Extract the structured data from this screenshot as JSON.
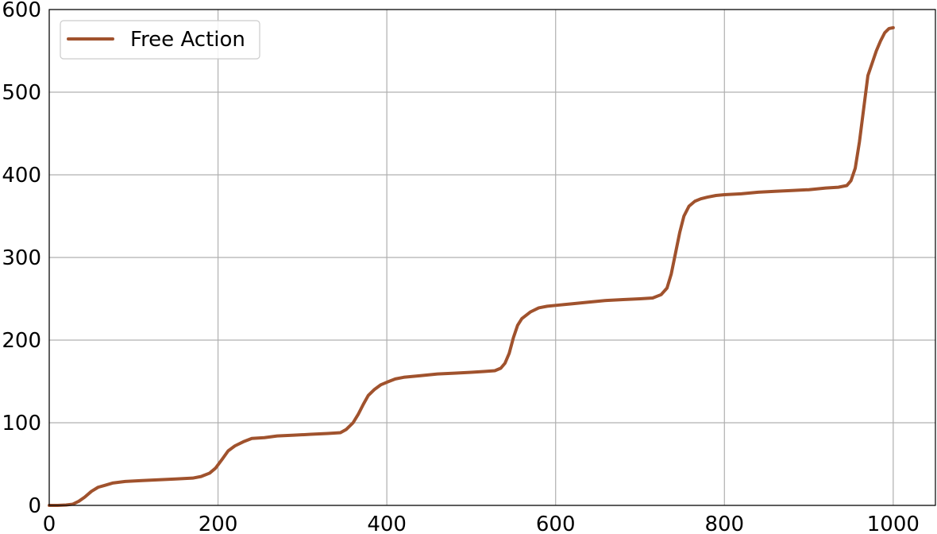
{
  "chart_data": {
    "type": "line",
    "title": "",
    "xlabel": "",
    "ylabel": "",
    "xlim": [
      0,
      1050
    ],
    "ylim": [
      0,
      600
    ],
    "x_ticks": [
      0,
      200,
      400,
      600,
      800,
      1000
    ],
    "y_ticks": [
      0,
      100,
      200,
      300,
      400,
      500,
      600
    ],
    "grid": true,
    "legend_position": "top-left",
    "series": [
      {
        "name": "Free Action",
        "color": "#a0522d",
        "x": [
          0,
          10,
          20,
          28,
          35,
          42,
          50,
          58,
          65,
          75,
          90,
          110,
          130,
          150,
          170,
          180,
          190,
          197,
          205,
          212,
          220,
          230,
          240,
          255,
          270,
          290,
          310,
          330,
          345,
          352,
          360,
          366,
          372,
          378,
          385,
          393,
          400,
          410,
          420,
          440,
          460,
          480,
          500,
          515,
          528,
          535,
          540,
          545,
          550,
          555,
          560,
          570,
          580,
          590,
          600,
          620,
          640,
          660,
          680,
          700,
          715,
          725,
          732,
          737,
          742,
          747,
          752,
          758,
          765,
          772,
          780,
          790,
          800,
          820,
          840,
          860,
          880,
          900,
          920,
          935,
          945,
          950,
          955,
          960,
          965,
          970,
          975,
          980,
          985,
          990,
          995,
          1000
        ],
        "y": [
          0,
          0,
          0.5,
          1.5,
          5,
          10,
          17,
          22,
          24,
          27,
          29,
          30,
          31,
          32,
          33,
          35,
          39,
          45,
          56,
          66,
          72,
          77,
          81,
          82,
          84,
          85,
          86,
          87,
          88,
          92,
          100,
          110,
          122,
          133,
          140,
          146,
          149,
          153,
          155,
          157,
          159,
          160,
          161,
          162,
          163,
          166,
          172,
          184,
          203,
          218,
          226,
          234,
          239,
          241,
          242,
          244,
          246,
          248,
          249,
          250,
          251,
          255,
          263,
          280,
          305,
          330,
          350,
          362,
          368,
          371,
          373,
          375,
          376,
          377,
          379,
          380,
          381,
          382,
          384,
          385,
          387,
          393,
          408,
          440,
          480,
          520,
          535,
          550,
          562,
          572,
          577,
          578
        ]
      }
    ]
  }
}
